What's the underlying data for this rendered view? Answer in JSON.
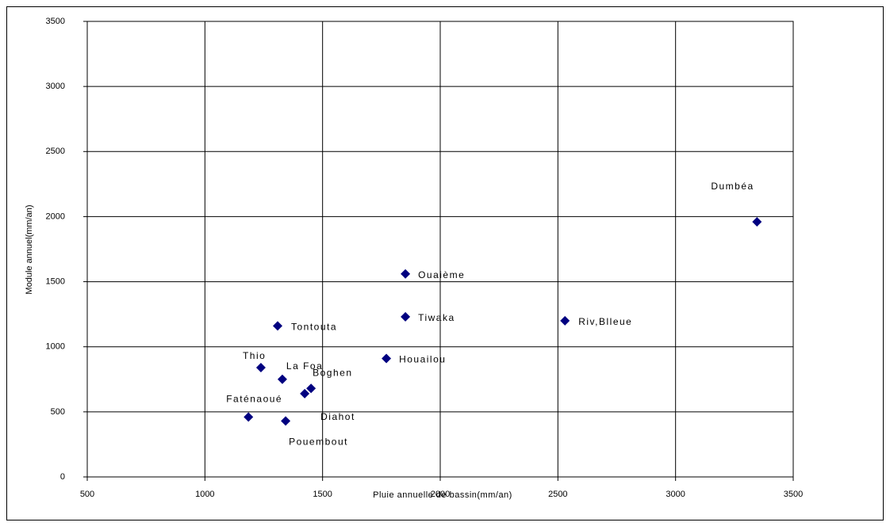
{
  "chart_data": {
    "type": "scatter",
    "x_label": "Pluie annuelle de bassin(mm/an)",
    "y_label": "Module annuel(mm/an)",
    "point_labels": [
      "Dumbéa",
      "Ouaième",
      "Tiwaka",
      "Riv,Blleue",
      "Tontouta",
      "Houailou",
      "Thio",
      "La Foa",
      "Boghen",
      "Diahot",
      "Faténaoué",
      "Pouembout"
    ],
    "x": [
      3346,
      1852,
      1852,
      2530,
      1309,
      1771,
      1238,
      1329,
      1451,
      1424,
      1185,
      1343
    ],
    "values": [
      1960,
      1560,
      1230,
      1200,
      1160,
      910,
      840,
      750,
      680,
      640,
      460,
      430
    ],
    "color": "#000080",
    "xlim": [
      500,
      3500
    ],
    "xticks": [
      500,
      1000,
      1500,
      2000,
      2500,
      3000,
      3500
    ],
    "ylim": [
      0,
      3500
    ],
    "yticks": [
      0,
      500,
      1000,
      1500,
      2000,
      2500,
      3000,
      3500
    ],
    "grid": true
  }
}
